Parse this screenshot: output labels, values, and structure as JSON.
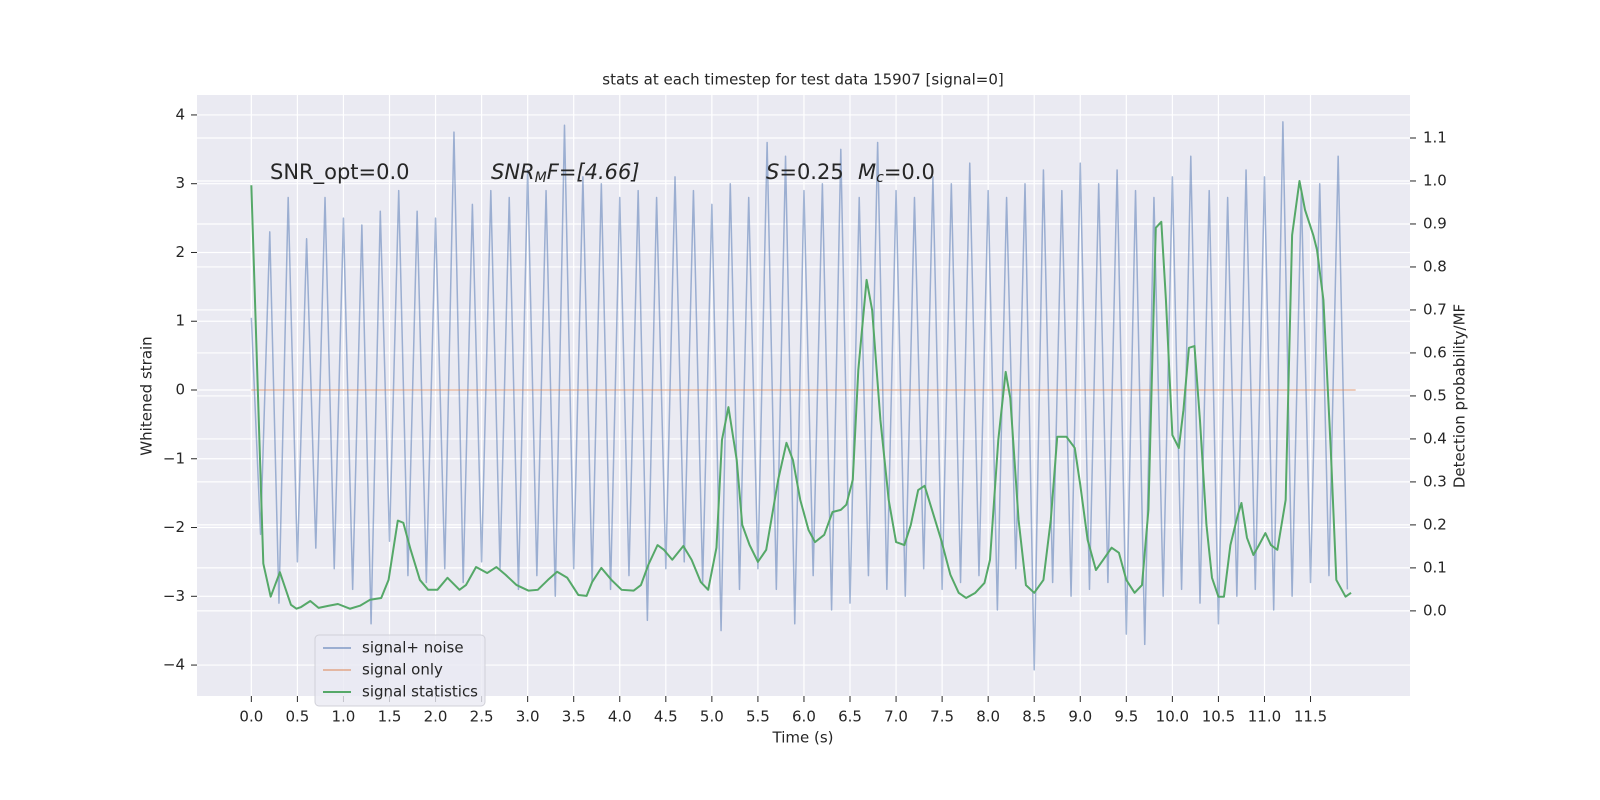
{
  "chart_data": {
    "type": "line",
    "title": "stats at each timestep for test data 15907 [signal=0]",
    "xlabel": "Time (s)",
    "ylabel": "Whitened strain",
    "y2label": "Detection probability/MF",
    "annotations": {
      "snr_opt": "SNR_opt=0.0",
      "snr_mf": {
        "main": "SNR",
        "sub": "M",
        "rest": "F=[4.66]"
      },
      "s": {
        "main": "S",
        "rest": "=0.25"
      },
      "mc": {
        "main": "M",
        "sub": "c",
        "rest": "=0.0"
      }
    },
    "xlim": [
      -0.59,
      12.58
    ],
    "ylim": [
      -4.45,
      4.29
    ],
    "y2lim": [
      -0.198,
      1.2
    ],
    "xticks": [
      {
        "value": 0,
        "label": "0.0"
      },
      0.5,
      {
        "value": 1,
        "label": "1.0"
      },
      1.5,
      {
        "value": 2,
        "label": "2.0"
      },
      2.5,
      {
        "value": 3,
        "label": "3.0"
      },
      3.5,
      {
        "value": 4,
        "label": "4.0"
      },
      4.5,
      {
        "value": 5,
        "label": "5.0"
      },
      5.5,
      {
        "value": 6,
        "label": "6.0"
      },
      6.5,
      {
        "value": 7,
        "label": "7.0"
      },
      7.5,
      {
        "value": 8,
        "label": "8.0"
      },
      8.5,
      {
        "value": 9,
        "label": "9.0"
      },
      9.5,
      {
        "value": 10,
        "label": "10.0"
      },
      10.5,
      {
        "value": 11,
        "label": "11.0"
      },
      11.5
    ],
    "yticks": [
      {
        "value": -4,
        "label": "−4"
      },
      {
        "value": -3,
        "label": "−3"
      },
      {
        "value": -2,
        "label": "−2"
      },
      {
        "value": -1,
        "label": "−1"
      },
      0,
      1,
      2,
      3,
      4
    ],
    "y2ticks": [
      {
        "value": 0,
        "label": "0.0"
      },
      0.1,
      0.2,
      0.3,
      0.4,
      0.5,
      0.6,
      0.7,
      0.8,
      0.9,
      {
        "value": 1,
        "label": "1.0"
      },
      1.1
    ],
    "grid": true,
    "legend": "lower left",
    "series": [
      {
        "name": "signal+ noise",
        "color": "#4c72b0",
        "alpha": 0.5,
        "x": [
          0,
          0.1,
          0.2,
          0.3,
          0.4,
          0.5,
          0.6,
          0.7,
          0.8,
          0.9,
          1,
          1.1,
          1.2,
          1.3,
          1.4,
          1.5,
          1.6,
          1.7,
          1.8,
          1.9,
          2,
          2.1,
          2.2,
          2.3,
          2.4,
          2.5,
          2.6,
          2.7,
          2.8,
          2.9,
          3,
          3.1,
          3.2,
          3.3,
          3.4,
          3.5,
          3.6,
          3.7,
          3.8,
          3.9,
          4,
          4.1,
          4.2,
          4.3,
          4.4,
          4.5,
          4.6,
          4.7,
          4.8,
          4.9,
          5,
          5.1,
          5.2,
          5.3,
          5.4,
          5.5,
          5.6,
          5.7,
          5.8,
          5.9,
          6,
          6.1,
          6.2,
          6.3,
          6.4,
          6.5,
          6.6,
          6.7,
          6.8,
          6.9,
          7,
          7.1,
          7.2,
          7.3,
          7.4,
          7.5,
          7.6,
          7.7,
          7.8,
          7.9,
          8,
          8.1,
          8.2,
          8.3,
          8.4,
          8.5,
          8.6,
          8.7,
          8.8,
          8.9,
          9,
          9.1,
          9.2,
          9.3,
          9.4,
          9.5,
          9.6,
          9.7,
          9.8,
          9.9,
          10,
          10.1,
          10.2,
          10.3,
          10.4,
          10.5,
          10.6,
          10.7,
          10.8,
          10.9,
          11,
          11.1,
          11.2,
          11.3,
          11.4,
          11.5,
          11.6,
          11.7,
          11.8,
          11.9
        ],
        "values": [
          1.05,
          -2.1,
          2.3,
          -3.1,
          2.8,
          -2.5,
          2.2,
          -2.3,
          2.8,
          -2.6,
          2.5,
          -2.9,
          2.4,
          -3.4,
          2.6,
          -2.2,
          2.9,
          -2.7,
          2.6,
          -2.8,
          2.5,
          -2.6,
          3.75,
          -2.8,
          2.7,
          -2.5,
          2.9,
          -2.6,
          2.8,
          -2.9,
          3.2,
          -2.7,
          2.9,
          -3.0,
          3.85,
          -2.6,
          3.1,
          -2.8,
          3.0,
          -2.9,
          2.8,
          -2.7,
          2.9,
          -3.35,
          2.8,
          -2.6,
          3.1,
          -2.5,
          2.9,
          -2.8,
          2.7,
          -3.5,
          3.0,
          -2.9,
          2.8,
          -2.6,
          3.6,
          -2.9,
          3.4,
          -3.4,
          2.9,
          -2.7,
          3.0,
          -3.2,
          3.5,
          -3.1,
          2.8,
          -2.7,
          3.6,
          -2.9,
          2.9,
          -3.0,
          2.8,
          -2.6,
          3.1,
          -2.9,
          3.0,
          -2.8,
          3.3,
          -2.7,
          2.9,
          -3.2,
          2.8,
          -2.6,
          3.0,
          -4.07,
          3.2,
          -2.8,
          2.9,
          -3.0,
          3.3,
          -2.9,
          3.0,
          -2.8,
          3.2,
          -3.55,
          2.9,
          -3.7,
          2.8,
          -3.0,
          3.1,
          -2.9,
          3.4,
          -3.1,
          2.9,
          -3.4,
          2.8,
          -3.0,
          3.2,
          -2.9,
          3.1,
          -3.2,
          3.9,
          -3.0,
          2.9,
          -2.8,
          3.0,
          -2.7,
          3.4,
          -2.9
        ]
      },
      {
        "name": "signal only",
        "color": "#dd8452",
        "alpha": 0.5,
        "x": [
          0,
          11.99
        ],
        "values": [
          0,
          0
        ]
      },
      {
        "name": "signal statistics",
        "color": "#55a868",
        "alpha": 1,
        "axis": "y2",
        "x": [
          0,
          0.13,
          0.21,
          0.31,
          0.43,
          0.49,
          0.54,
          0.64,
          0.73,
          0.84,
          0.94,
          1.07,
          1.18,
          1.29,
          1.41,
          1.49,
          1.59,
          1.65,
          1.73,
          1.83,
          1.92,
          2.02,
          2.13,
          2.26,
          2.33,
          2.44,
          2.56,
          2.66,
          2.76,
          2.88,
          3.01,
          3.11,
          3.22,
          3.32,
          3.43,
          3.55,
          3.64,
          3.7,
          3.8,
          3.91,
          4.02,
          4.15,
          4.23,
          4.31,
          4.41,
          4.48,
          4.57,
          4.69,
          4.78,
          4.88,
          4.96,
          5.05,
          5.11,
          5.18,
          5.27,
          5.33,
          5.41,
          5.5,
          5.59,
          5.72,
          5.81,
          5.88,
          5.96,
          6.05,
          6.12,
          6.22,
          6.31,
          6.4,
          6.46,
          6.53,
          6.59,
          6.68,
          6.74,
          6.83,
          6.92,
          7,
          7.09,
          7.16,
          7.24,
          7.31,
          7.39,
          7.49,
          7.59,
          7.68,
          7.76,
          7.86,
          7.96,
          8.02,
          8.11,
          8.19,
          8.24,
          8.33,
          8.41,
          8.5,
          8.6,
          8.68,
          8.75,
          8.85,
          8.94,
          9,
          9.08,
          9.17,
          9.25,
          9.34,
          9.42,
          9.5,
          9.59,
          9.67,
          9.74,
          9.82,
          9.88,
          9.93,
          10,
          10.07,
          10.12,
          10.18,
          10.24,
          10.3,
          10.37,
          10.43,
          10.5,
          10.56,
          10.63,
          10.71,
          10.75,
          10.81,
          10.88,
          10.94,
          11.01,
          11.07,
          11.14,
          11.23,
          11.3,
          11.38,
          11.44,
          11.53,
          11.57,
          11.64,
          11.72,
          11.78,
          11.88,
          11.94
        ],
        "values": [
          0.99,
          0.11,
          0.033,
          0.09,
          0.014,
          0.005,
          0.009,
          0.023,
          0.007,
          0.012,
          0.016,
          0.005,
          0.012,
          0.026,
          0.03,
          0.072,
          0.21,
          0.205,
          0.142,
          0.072,
          0.049,
          0.049,
          0.077,
          0.049,
          0.06,
          0.102,
          0.088,
          0.102,
          0.084,
          0.06,
          0.047,
          0.049,
          0.072,
          0.091,
          0.077,
          0.037,
          0.035,
          0.067,
          0.1,
          0.072,
          0.049,
          0.047,
          0.06,
          0.107,
          0.153,
          0.142,
          0.119,
          0.151,
          0.119,
          0.067,
          0.049,
          0.147,
          0.398,
          0.474,
          0.351,
          0.2,
          0.153,
          0.114,
          0.142,
          0.305,
          0.391,
          0.351,
          0.258,
          0.188,
          0.16,
          0.177,
          0.23,
          0.235,
          0.247,
          0.305,
          0.56,
          0.77,
          0.7,
          0.444,
          0.258,
          0.16,
          0.153,
          0.2,
          0.281,
          0.291,
          0.235,
          0.165,
          0.084,
          0.042,
          0.03,
          0.042,
          0.065,
          0.119,
          0.398,
          0.556,
          0.495,
          0.212,
          0.06,
          0.042,
          0.072,
          0.212,
          0.405,
          0.405,
          0.379,
          0.293,
          0.165,
          0.095,
          0.119,
          0.147,
          0.135,
          0.072,
          0.042,
          0.06,
          0.235,
          0.891,
          0.905,
          0.723,
          0.409,
          0.379,
          0.467,
          0.612,
          0.616,
          0.442,
          0.2,
          0.077,
          0.033,
          0.033,
          0.153,
          0.223,
          0.251,
          0.17,
          0.13,
          0.153,
          0.181,
          0.153,
          0.142,
          0.258,
          0.874,
          1.0,
          0.933,
          0.874,
          0.84,
          0.723,
          0.374,
          0.072,
          0.033,
          0.042
        ]
      }
    ]
  }
}
